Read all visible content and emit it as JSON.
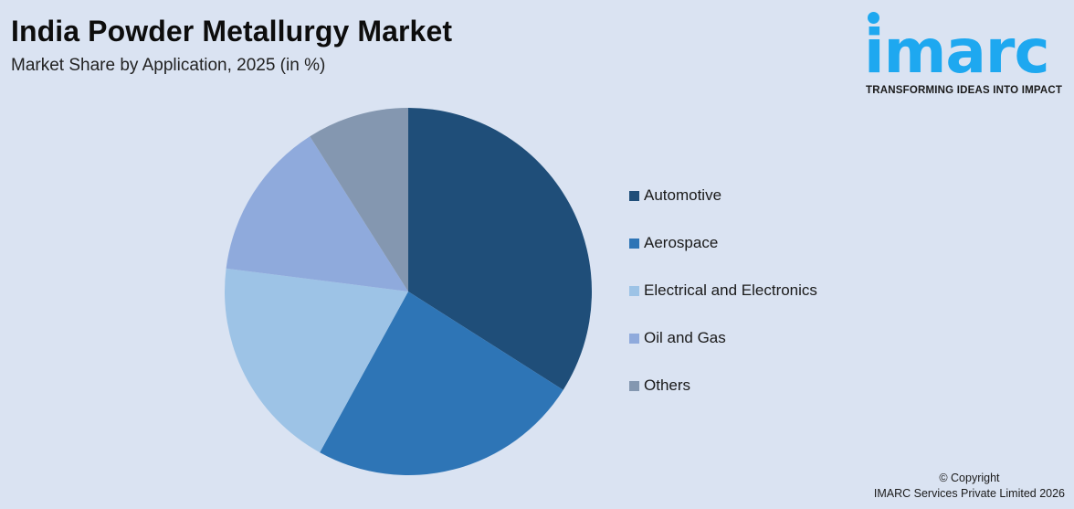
{
  "header": {
    "title": "India Powder Metallurgy Market",
    "subtitle": "Market Share by Application, 2025 (in %)"
  },
  "logo": {
    "word": "imarc",
    "tagline": "TRANSFORMING IDEAS INTO IMPACT",
    "color": "#1ea8f0"
  },
  "footer": {
    "line1": "© Copyright",
    "line2": "IMARC Services Private Limited 2026"
  },
  "chart_data": {
    "type": "pie",
    "title": "India Powder Metallurgy Market",
    "subtitle": "Market Share by Application, 2025 (in %)",
    "categories": [
      "Automotive",
      "Aerospace",
      "Electrical and Electronics",
      "Oil and Gas",
      "Others"
    ],
    "values": [
      34,
      24,
      19,
      14,
      9
    ],
    "colors": [
      "#1f4e79",
      "#2e75b6",
      "#9dc3e6",
      "#8faadc",
      "#8497b0"
    ],
    "start_angle_deg": 0,
    "direction": "clockwise",
    "data_labels": false,
    "legend_position": "right"
  }
}
